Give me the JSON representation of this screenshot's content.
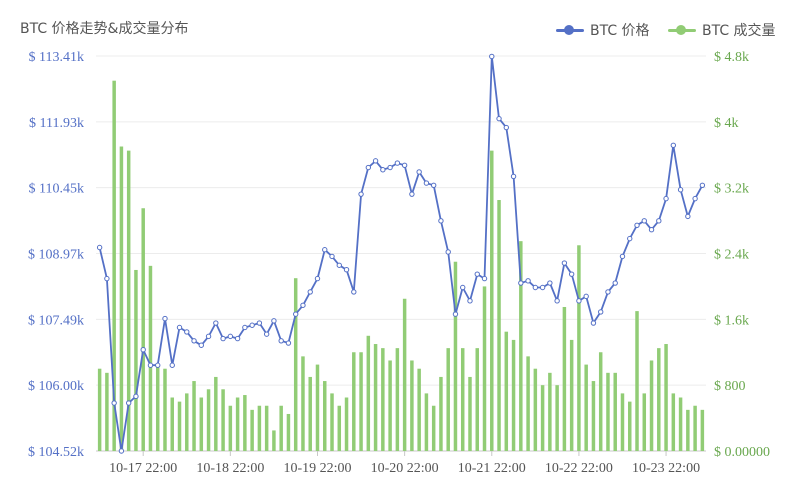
{
  "chart_data": {
    "type": "bar+line",
    "title": "BTC 价格走势&成交量分布",
    "x_tick_labels": [
      "10-17 22:00",
      "10-18 22:00",
      "10-19 22:00",
      "10-20 22:00",
      "10-21 22:00",
      "10-22 22:00",
      "10-23 22:00"
    ],
    "x_tick_index": [
      6,
      18,
      30,
      42,
      54,
      66,
      78
    ],
    "series": [
      {
        "name": "BTC 价格",
        "type": "line",
        "axis": "left",
        "color": "#5470c6",
        "values": [
          109.1,
          108.4,
          105.6,
          104.52,
          105.6,
          105.75,
          106.8,
          106.45,
          106.45,
          107.5,
          106.45,
          107.3,
          107.2,
          107.0,
          106.9,
          107.1,
          107.4,
          107.05,
          107.1,
          107.05,
          107.3,
          107.35,
          107.4,
          107.15,
          107.45,
          107.0,
          106.95,
          107.6,
          107.8,
          108.1,
          108.4,
          109.05,
          108.9,
          108.7,
          108.6,
          108.1,
          110.3,
          110.9,
          111.05,
          110.85,
          110.9,
          111.0,
          110.95,
          110.3,
          110.8,
          110.55,
          110.5,
          109.7,
          109.0,
          107.6,
          108.2,
          107.9,
          108.5,
          108.4,
          113.4,
          112.0,
          111.8,
          110.7,
          108.3,
          108.35,
          108.2,
          108.2,
          108.3,
          107.9,
          108.75,
          108.5,
          107.9,
          108.0,
          107.4,
          107.65,
          108.1,
          108.3,
          108.9,
          109.3,
          109.6,
          109.7,
          109.5,
          109.7,
          110.2,
          111.4,
          110.4,
          109.8,
          110.2,
          110.5
        ]
      },
      {
        "name": "BTC 成交量",
        "type": "bar",
        "axis": "right",
        "color": "#91cc75",
        "values": [
          1000,
          950,
          4500,
          3700,
          3650,
          2200,
          2950,
          2250,
          1050,
          1000,
          650,
          600,
          700,
          850,
          650,
          750,
          900,
          750,
          550,
          650,
          680,
          500,
          550,
          550,
          250,
          550,
          450,
          2100,
          1150,
          900,
          1050,
          850,
          700,
          550,
          650,
          1200,
          1200,
          1400,
          1300,
          1250,
          1100,
          1250,
          1850,
          1100,
          1000,
          700,
          550,
          900,
          1250,
          2300,
          1250,
          900,
          1250,
          2000,
          3650,
          3050,
          1450,
          1350,
          2550,
          1150,
          1000,
          800,
          950,
          800,
          1750,
          1350,
          2500,
          1050,
          850,
          1200,
          950,
          950,
          700,
          600,
          1700,
          700,
          1100,
          1250,
          1300,
          700,
          650,
          500,
          550,
          500
        ]
      }
    ],
    "y_left": {
      "min": 104.52,
      "max": 113.41,
      "ticks": [
        "$ 104.52k",
        "$ 106.00k",
        "$ 107.49k",
        "$ 108.97k",
        "$ 110.45k",
        "$ 111.93k",
        "$ 113.41k"
      ],
      "color": "#5470c6"
    },
    "y_right": {
      "min": 0,
      "max": 4800,
      "ticks": [
        "$ 0.00000",
        "$ 800",
        "$ 1.6k",
        "$ 2.4k",
        "$ 3.2k",
        "$ 4k",
        "$ 4.8k"
      ],
      "color": "#6aa84f"
    },
    "grid": "horizontal",
    "legend_position": "top-right"
  }
}
